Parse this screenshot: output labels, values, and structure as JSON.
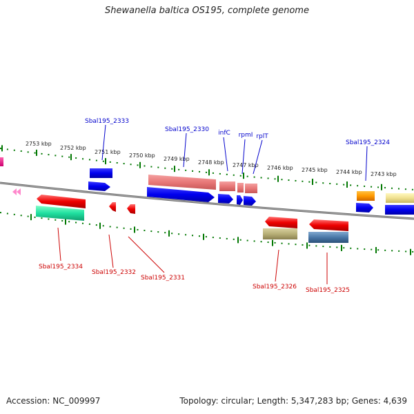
{
  "title": "Shewanella baltica OS195, complete genome",
  "accession": "Accession: NC_009997",
  "topology": "Topology: circular; Length: 5,347,283 bp; Genes: 4,639",
  "colors": {
    "top_label": "#0000cc",
    "bottom_label": "#cc0000",
    "tick": "#007700",
    "backbone": "#888888"
  },
  "ticks": [
    {
      "label": "2753 kbp"
    },
    {
      "label": "2752 kbp"
    },
    {
      "label": "2751 kbp"
    },
    {
      "label": "2750 kbp"
    },
    {
      "label": "2749 kbp"
    },
    {
      "label": "2748 kbp"
    },
    {
      "label": "2747 kbp"
    },
    {
      "label": "2746 kbp"
    },
    {
      "label": "2745 kbp"
    },
    {
      "label": "2744 kbp"
    },
    {
      "label": "2743 kbp"
    }
  ],
  "top_labels": [
    "Sbal195_2333",
    "Sbal195_2330",
    "infC",
    "rpmI",
    "rplT",
    "Sbal195_2324"
  ],
  "bottom_labels": [
    "Sbal195_2334",
    "Sbal195_2332",
    "Sbal195_2331",
    "Sbal195_2326",
    "Sbal195_2325"
  ]
}
